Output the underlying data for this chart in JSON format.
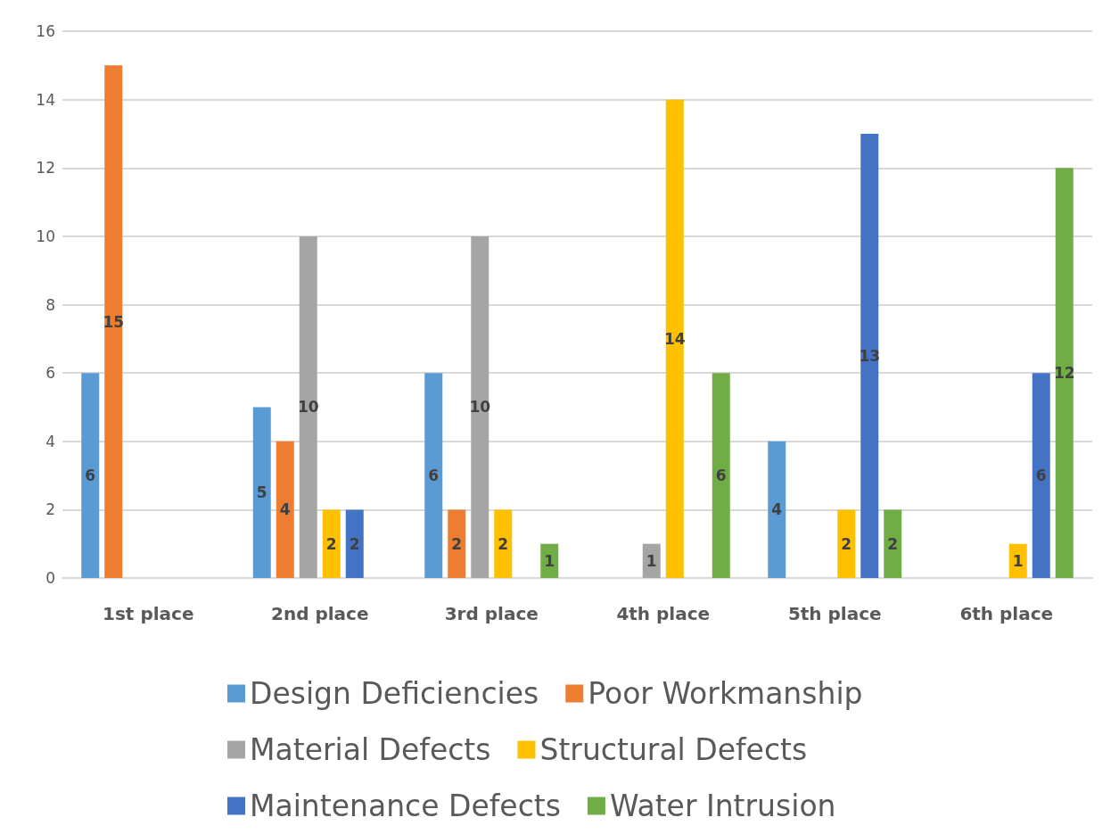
{
  "chart_data": {
    "type": "bar",
    "categories": [
      "1st place",
      "2nd place",
      "3rd place",
      "4th place",
      "5th place",
      "6th place"
    ],
    "series": [
      {
        "name": "Design Deficiencies",
        "color": "#5b9bd5",
        "values": [
          6,
          5,
          6,
          0,
          4,
          0
        ],
        "value_labels": [
          "6",
          "5",
          "6",
          null,
          "4",
          null
        ]
      },
      {
        "name": "Poor Workmanship",
        "color": "#ed7d31",
        "values": [
          15,
          4,
          2,
          0,
          0,
          0
        ],
        "value_labels": [
          "15",
          "4",
          "2",
          null,
          null,
          null
        ]
      },
      {
        "name": "Material Defects",
        "color": "#a5a5a5",
        "values": [
          0,
          10,
          10,
          1,
          0,
          0
        ],
        "value_labels": [
          null,
          "10",
          "10",
          "1",
          null,
          null
        ]
      },
      {
        "name": "Structural Defects",
        "color": "#ffc000",
        "values": [
          0,
          2,
          2,
          14,
          2,
          1
        ],
        "value_labels": [
          null,
          "2",
          "2",
          "14",
          "2",
          "1"
        ]
      },
      {
        "name": "Maintenance Defects",
        "color": "#4472c4",
        "values": [
          0,
          2,
          0,
          0,
          13,
          6
        ],
        "value_labels": [
          null,
          "2",
          null,
          null,
          "13",
          "6"
        ]
      },
      {
        "name": "Water Intrusion",
        "color": "#70ad47",
        "values": [
          0,
          0,
          1,
          6,
          2,
          12
        ],
        "value_labels": [
          null,
          null,
          "1",
          "6",
          "2",
          "12"
        ]
      }
    ],
    "ylim": [
      0,
      16
    ],
    "yticks": [
      0,
      2,
      4,
      6,
      8,
      10,
      12,
      14,
      16
    ],
    "grid": "y",
    "legend": "bottom"
  }
}
